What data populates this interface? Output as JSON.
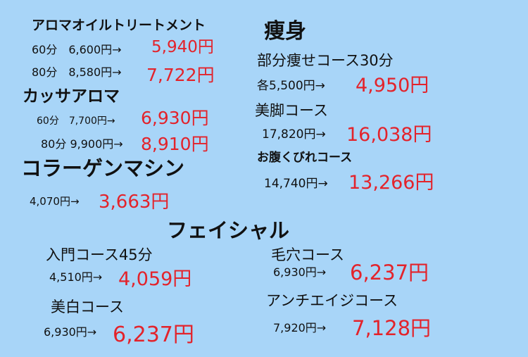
{
  "left": {
    "aroma": {
      "title": "アロマオイルトリートメント",
      "items": [
        {
          "regular": "60分　6,600円→",
          "sale": "5,940円"
        },
        {
          "regular": "80分　8,580円→",
          "sale": "7,722円"
        }
      ]
    },
    "kassa": {
      "title": "カッサアロマ",
      "items": [
        {
          "regular": "60分　7,700円→",
          "sale": "6,930円"
        },
        {
          "regular": "80分 9,900円→",
          "sale": "8,910円"
        }
      ]
    },
    "collagen": {
      "title": "コラーゲンマシン",
      "items": [
        {
          "regular": "4,070円→",
          "sale": "3,663円"
        }
      ]
    }
  },
  "slimming": {
    "title": "痩身",
    "courses": [
      {
        "name": "部分痩せコース30分",
        "regular": "各5,500円→",
        "sale": "4,950円"
      },
      {
        "name": "美脚コース",
        "regular": "17,820円→",
        "sale": "16,038円"
      },
      {
        "name": "お腹くびれコース",
        "regular": "14,740円→",
        "sale": "13,266円"
      }
    ]
  },
  "facial": {
    "title": "フェイシャル",
    "courses": [
      {
        "name": "入門コース45分",
        "regular": "4,510円→",
        "sale": "4,059円"
      },
      {
        "name": "美白コース",
        "regular": "6,930円→",
        "sale": "6,237円"
      },
      {
        "name": "毛穴コース",
        "regular": "6,930円→",
        "sale": "6,237円"
      },
      {
        "name": "アンチエイジコース",
        "regular": "7,920円→",
        "sale": "7,128円"
      }
    ]
  }
}
